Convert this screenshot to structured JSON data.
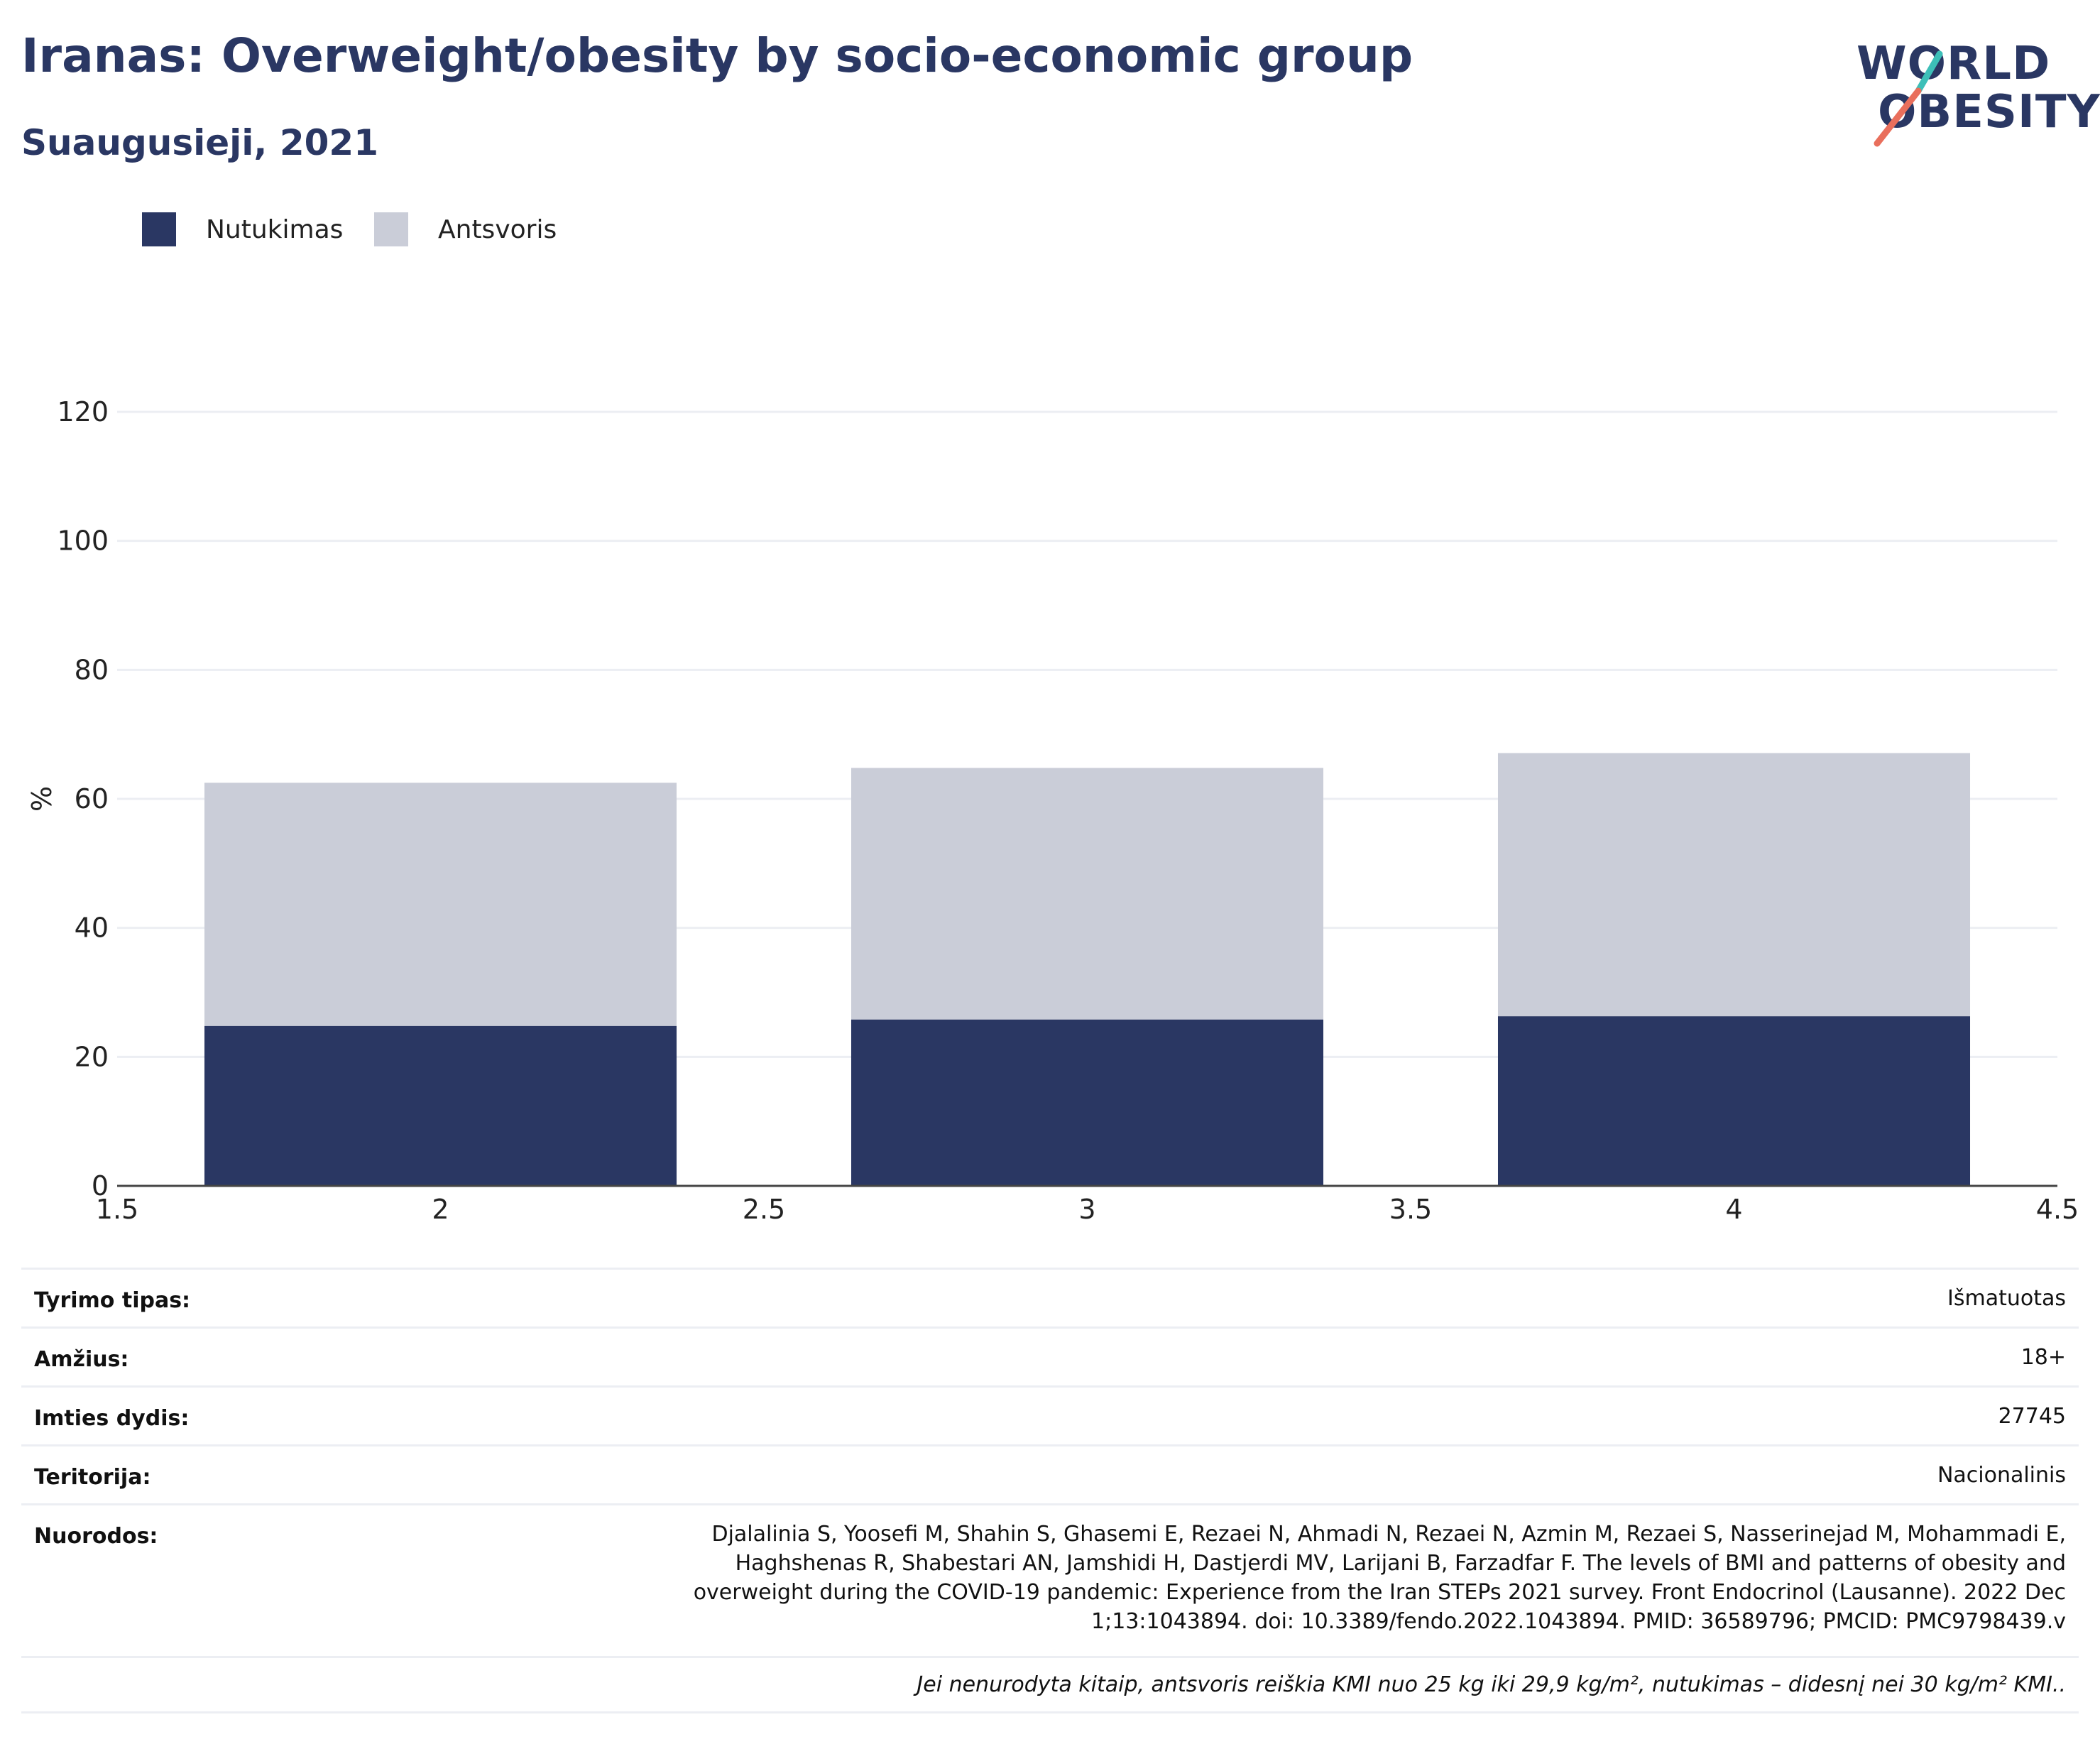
{
  "header": {
    "title": "Iranas: Overweight/obesity by socio-economic group",
    "subtitle": "Suaugusieji, 2021"
  },
  "logo": {
    "line1": "WORLD",
    "line2": "OBESITY",
    "accent_teal": "#3dbfb8",
    "accent_coral": "#e96f5c"
  },
  "colors": {
    "obesity": "#2a3763",
    "overweight": "#cacdd8",
    "grid": "#eceef3",
    "axis": "#444444"
  },
  "chart_data": {
    "type": "bar",
    "stacked": true,
    "x": [
      2,
      3,
      4
    ],
    "series": [
      {
        "name": "Nutukimas",
        "values": [
          24.8,
          25.8,
          26.3
        ],
        "color": "#2a3763"
      },
      {
        "name": "Antsvoris",
        "values": [
          37.7,
          39.0,
          40.8
        ],
        "color": "#cacdd8"
      }
    ],
    "xlim": [
      1.5,
      4.5
    ],
    "ylim": [
      0,
      120
    ],
    "xticks": [
      1.5,
      2,
      2.5,
      3,
      3.5,
      4,
      4.5
    ],
    "xtick_labels": [
      "1.5",
      "2",
      "2.5",
      "3",
      "3.5",
      "4",
      "4.5"
    ],
    "yticks": [
      0,
      20,
      40,
      60,
      80,
      100,
      120
    ],
    "ytick_labels": [
      "0",
      "20",
      "40",
      "60",
      "80",
      "100",
      "120"
    ],
    "bar_width": 0.73,
    "ylabel": "%",
    "xlabel": "",
    "grid": true,
    "legend_position": "top-left"
  },
  "info": [
    {
      "key": "Tyrimo tipas:",
      "value": "Išmatuotas"
    },
    {
      "key": "Amžius:",
      "value": "18+"
    },
    {
      "key": "Imties dydis:",
      "value": "27745"
    },
    {
      "key": "Teritorija:",
      "value": "Nacionalinis"
    },
    {
      "key": "Nuorodos:",
      "value_lines": [
        "Djalalinia S, Yoosefi M, Shahin S, Ghasemi E, Rezaei N, Ahmadi N, Rezaei N, Azmin M, Rezaei S, Nasserinejad M, Mohammadi E,",
        "Haghshenas R, Shabestari AN, Jamshidi H, Dastjerdi MV, Larijani B, Farzadfar F. The levels of BMI and patterns of obesity and",
        "overweight during the COVID-19 pandemic: Experience from the Iran STEPs 2021 survey. Front Endocrinol (Lausanne). 2022 Dec",
        "1;13:1043894. doi: 10.3389/fendo.2022.1043894. PMID: 36589796; PMCID: PMC9798439.v"
      ]
    }
  ],
  "footnote": "Jei nenurodyta kitaip, antsvoris reiškia KMI nuo 25 kg iki 29,9 kg/m², nutukimas – didesnį nei 30 kg/m² KMI.."
}
